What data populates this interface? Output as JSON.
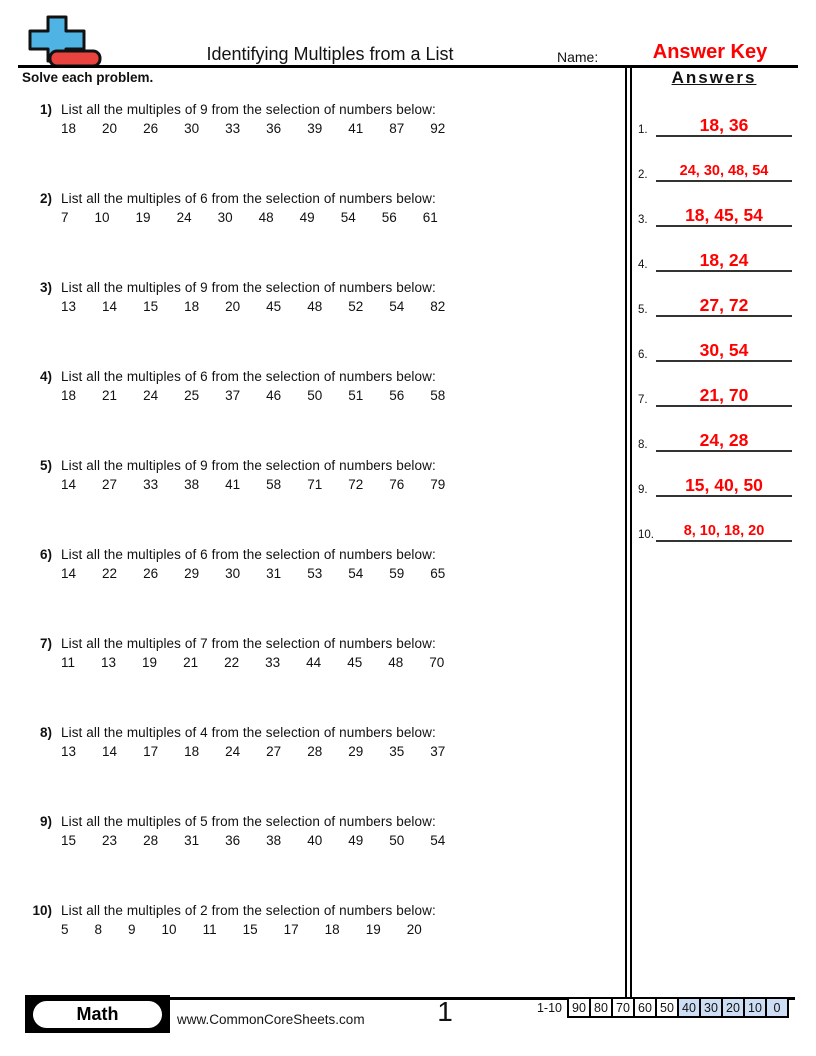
{
  "header": {
    "title": "Identifying Multiples from a List",
    "name_label": "Name:",
    "name_value": "Answer Key",
    "accent_color": "#ff0000",
    "logo": {
      "plus_color": "#4FB4E4",
      "bar_color": "#E8433F"
    }
  },
  "instructions": "Solve each problem.",
  "answers_panel": {
    "heading": "Answers",
    "items": [
      {
        "num": "1.",
        "answer": "18, 36"
      },
      {
        "num": "2.",
        "answer": "24, 30, 48, 54"
      },
      {
        "num": "3.",
        "answer": "18, 45, 54"
      },
      {
        "num": "4.",
        "answer": "18, 24"
      },
      {
        "num": "5.",
        "answer": "27, 72"
      },
      {
        "num": "6.",
        "answer": "30, 54"
      },
      {
        "num": "7.",
        "answer": "21, 70"
      },
      {
        "num": "8.",
        "answer": "24, 28"
      },
      {
        "num": "9.",
        "answer": "15, 40, 50"
      },
      {
        "num": "10.",
        "answer": "8, 10, 18, 20"
      }
    ]
  },
  "problems": [
    {
      "num": "1)",
      "question": "List all the multiples of 9 from the selection of numbers below:",
      "numbers": [
        "18",
        "20",
        "26",
        "30",
        "33",
        "36",
        "39",
        "41",
        "87",
        "92"
      ]
    },
    {
      "num": "2)",
      "question": "List all the multiples of 6 from the selection of numbers below:",
      "numbers": [
        "7",
        "10",
        "19",
        "24",
        "30",
        "48",
        "49",
        "54",
        "56",
        "61"
      ]
    },
    {
      "num": "3)",
      "question": "List all the multiples of 9 from the selection of numbers below:",
      "numbers": [
        "13",
        "14",
        "15",
        "18",
        "20",
        "45",
        "48",
        "52",
        "54",
        "82"
      ]
    },
    {
      "num": "4)",
      "question": "List all the multiples of 6 from the selection of numbers below:",
      "numbers": [
        "18",
        "21",
        "24",
        "25",
        "37",
        "46",
        "50",
        "51",
        "56",
        "58"
      ]
    },
    {
      "num": "5)",
      "question": "List all the multiples of 9 from the selection of numbers below:",
      "numbers": [
        "14",
        "27",
        "33",
        "38",
        "41",
        "58",
        "71",
        "72",
        "76",
        "79"
      ]
    },
    {
      "num": "6)",
      "question": "List all the multiples of 6 from the selection of numbers below:",
      "numbers": [
        "14",
        "22",
        "26",
        "29",
        "30",
        "31",
        "53",
        "54",
        "59",
        "65"
      ]
    },
    {
      "num": "7)",
      "question": "List all the multiples of 7 from the selection of numbers below:",
      "numbers": [
        "11",
        "13",
        "19",
        "21",
        "22",
        "33",
        "44",
        "45",
        "48",
        "70"
      ]
    },
    {
      "num": "8)",
      "question": "List all the multiples of 4 from the selection of numbers below:",
      "numbers": [
        "13",
        "14",
        "17",
        "18",
        "24",
        "27",
        "28",
        "29",
        "35",
        "37"
      ]
    },
    {
      "num": "9)",
      "question": "List all the multiples of 5 from the selection of numbers below:",
      "numbers": [
        "15",
        "23",
        "28",
        "31",
        "36",
        "38",
        "40",
        "49",
        "50",
        "54"
      ]
    },
    {
      "num": "10)",
      "question": "List all the multiples of 2 from the selection of numbers below:",
      "numbers": [
        "5",
        "8",
        "9",
        "10",
        "11",
        "15",
        "17",
        "18",
        "19",
        "20"
      ]
    }
  ],
  "footer": {
    "subject_badge": "Math",
    "website": "www.CommonCoreSheets.com",
    "page_number": "1",
    "score_table": {
      "range_label": "1-10",
      "scores": [
        "90",
        "80",
        "70",
        "60",
        "50",
        "40",
        "30",
        "20",
        "10",
        "0"
      ],
      "highlight_from_index": 5,
      "highlight_color": "#cdddf4"
    }
  }
}
